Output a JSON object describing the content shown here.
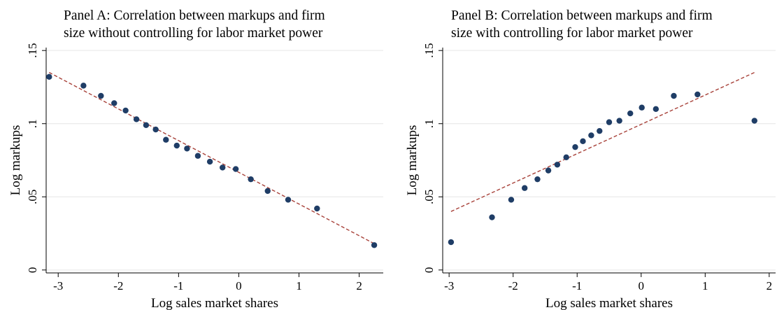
{
  "chart_data": [
    {
      "type": "scatter",
      "title_lines": [
        "Panel A: Correlation between markups and firm",
        "size without controlling for labor market power"
      ],
      "xlabel": "Log sales market shares",
      "ylabel": "Log markups",
      "xlim": [
        -3.2,
        2.4
      ],
      "ylim": [
        -0.002,
        0.152
      ],
      "xticks": [
        {
          "v": -3,
          "t": "-3"
        },
        {
          "v": -2,
          "t": "-2"
        },
        {
          "v": -1,
          "t": "-1"
        },
        {
          "v": 0,
          "t": "0"
        },
        {
          "v": 1,
          "t": "1"
        },
        {
          "v": 2,
          "t": "2"
        }
      ],
      "yticks": [
        {
          "v": 0,
          "t": "0"
        },
        {
          "v": 0.05,
          "t": ".05"
        },
        {
          "v": 0.1,
          "t": ".1"
        },
        {
          "v": 0.15,
          "t": ".15"
        }
      ],
      "grid": true,
      "points": [
        {
          "x": -3.15,
          "y": 0.132
        },
        {
          "x": -2.58,
          "y": 0.126
        },
        {
          "x": -2.29,
          "y": 0.119
        },
        {
          "x": -2.07,
          "y": 0.114
        },
        {
          "x": -1.88,
          "y": 0.109
        },
        {
          "x": -1.7,
          "y": 0.103
        },
        {
          "x": -1.54,
          "y": 0.099
        },
        {
          "x": -1.38,
          "y": 0.096
        },
        {
          "x": -1.21,
          "y": 0.089
        },
        {
          "x": -1.03,
          "y": 0.085
        },
        {
          "x": -0.86,
          "y": 0.083
        },
        {
          "x": -0.68,
          "y": 0.078
        },
        {
          "x": -0.48,
          "y": 0.074
        },
        {
          "x": -0.27,
          "y": 0.07
        },
        {
          "x": -0.05,
          "y": 0.069
        },
        {
          "x": 0.2,
          "y": 0.062
        },
        {
          "x": 0.48,
          "y": 0.054
        },
        {
          "x": 0.82,
          "y": 0.048
        },
        {
          "x": 1.3,
          "y": 0.042
        },
        {
          "x": 2.25,
          "y": 0.017
        }
      ],
      "fit_line": {
        "x": [
          -3.15,
          2.25
        ],
        "y": [
          0.135,
          0.018
        ]
      },
      "colors": {
        "points": "#1f3d66",
        "fit_line": "#a8423a",
        "grid": "#e6e6e6",
        "axis": "#000000"
      }
    },
    {
      "type": "scatter",
      "title_lines": [
        "Panel B: Correlation between markups and firm",
        "size with controlling for labor market power"
      ],
      "xlabel": "Log sales market shares",
      "ylabel": "Log markups",
      "xlim": [
        -3.1,
        2.1
      ],
      "ylim": [
        -0.002,
        0.152
      ],
      "xticks": [
        {
          "v": -3,
          "t": "-3"
        },
        {
          "v": -2,
          "t": "-2"
        },
        {
          "v": -1,
          "t": "-1"
        },
        {
          "v": 0,
          "t": "0"
        },
        {
          "v": 1,
          "t": "1"
        },
        {
          "v": 2,
          "t": "2"
        }
      ],
      "yticks": [
        {
          "v": 0,
          "t": "0"
        },
        {
          "v": 0.05,
          "t": ".05"
        },
        {
          "v": 0.1,
          "t": ".1"
        },
        {
          "v": 0.15,
          "t": ".15"
        }
      ],
      "grid": true,
      "points": [
        {
          "x": -2.97,
          "y": 0.019
        },
        {
          "x": -2.33,
          "y": 0.036
        },
        {
          "x": -2.03,
          "y": 0.048
        },
        {
          "x": -1.82,
          "y": 0.056
        },
        {
          "x": -1.62,
          "y": 0.062
        },
        {
          "x": -1.45,
          "y": 0.068
        },
        {
          "x": -1.31,
          "y": 0.072
        },
        {
          "x": -1.17,
          "y": 0.077
        },
        {
          "x": -1.03,
          "y": 0.084
        },
        {
          "x": -0.91,
          "y": 0.088
        },
        {
          "x": -0.78,
          "y": 0.092
        },
        {
          "x": -0.65,
          "y": 0.095
        },
        {
          "x": -0.5,
          "y": 0.101
        },
        {
          "x": -0.34,
          "y": 0.102
        },
        {
          "x": -0.17,
          "y": 0.107
        },
        {
          "x": 0.01,
          "y": 0.111
        },
        {
          "x": 0.23,
          "y": 0.11
        },
        {
          "x": 0.51,
          "y": 0.119
        },
        {
          "x": 0.88,
          "y": 0.12
        },
        {
          "x": 1.77,
          "y": 0.102
        }
      ],
      "fit_line": {
        "x": [
          -2.97,
          1.77
        ],
        "y": [
          0.04,
          0.135
        ]
      },
      "colors": {
        "points": "#1f3d66",
        "fit_line": "#a8423a",
        "grid": "#e6e6e6",
        "axis": "#000000"
      }
    }
  ]
}
